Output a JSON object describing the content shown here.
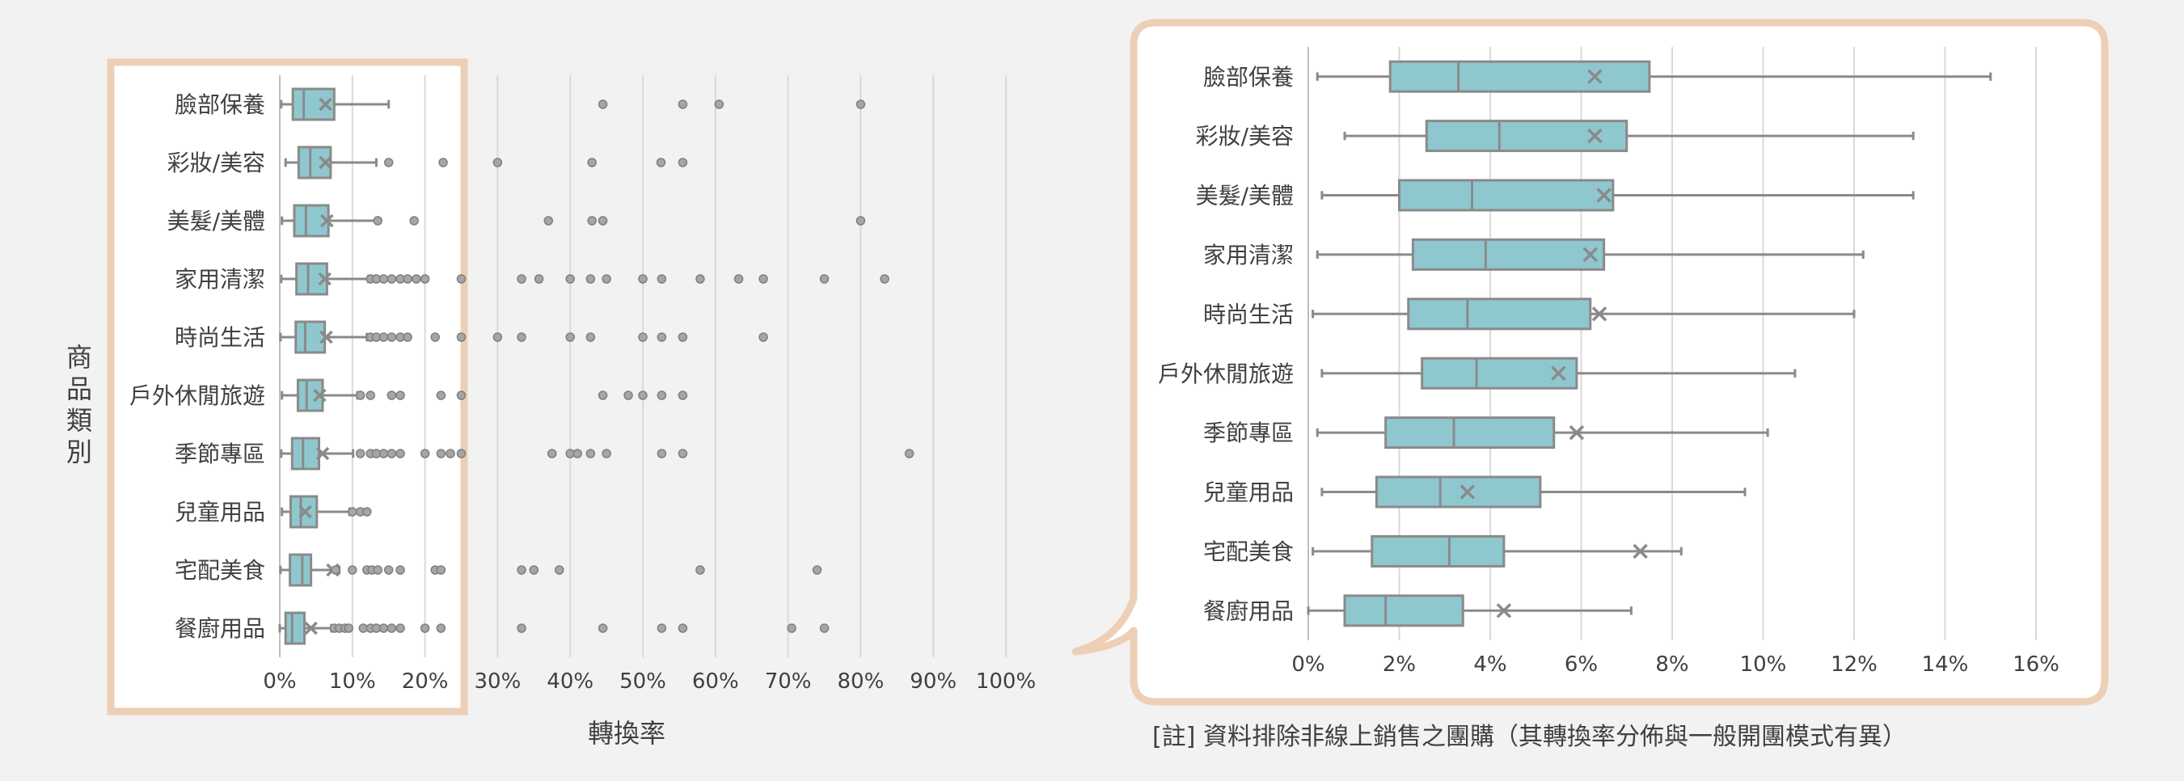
{
  "colors": {
    "box_fill": "#8fc7cf",
    "box_stroke": "#8a8a8a",
    "outlier": "#8a8a8a",
    "highlight_frame": "#eccfb5",
    "background": "#f2f2f2",
    "gridline": "#d9d9d9",
    "text": "#404040"
  },
  "chart_data": [
    {
      "type": "box",
      "orientation": "horizontal",
      "xlabel": "轉換率",
      "ylabel": "商品類別",
      "xlim": [
        0,
        100
      ],
      "x_unit": "%",
      "x_ticks": [
        "0%",
        "10%",
        "20%",
        "30%",
        "40%",
        "50%",
        "60%",
        "70%",
        "80%",
        "90%",
        "100%"
      ],
      "grid": "vertical",
      "highlight": "magnified range 0%–25%",
      "categories": [
        "臉部保養",
        "彩妝/美容",
        "美髮/美體",
        "家用清潔",
        "時尚生活",
        "戶外休閒旅遊",
        "季節專區",
        "兒童用品",
        "宅配美食",
        "餐廚用品"
      ],
      "series": [
        {
          "min": 0.2,
          "q1": 1.8,
          "median": 3.3,
          "q3": 7.5,
          "max": 15.0,
          "mean": 6.3,
          "outliers": [
            44.5,
            55.5,
            60.5,
            80.0
          ]
        },
        {
          "min": 0.8,
          "q1": 2.6,
          "median": 4.2,
          "q3": 7.0,
          "max": 13.3,
          "mean": 6.3,
          "outliers": [
            15.0,
            22.5,
            30.0,
            43.0,
            52.5,
            55.5
          ]
        },
        {
          "min": 0.3,
          "q1": 2.0,
          "median": 3.6,
          "q3": 6.7,
          "max": 13.3,
          "mean": 6.5,
          "outliers": [
            13.5,
            18.5,
            37.0,
            43.0,
            44.5,
            80.0
          ]
        },
        {
          "min": 0.2,
          "q1": 2.3,
          "median": 3.9,
          "q3": 6.5,
          "max": 12.2,
          "mean": 6.2,
          "outliers": [
            12.5,
            13.3,
            14.3,
            15.4,
            16.6,
            17.6,
            18.8,
            20.0,
            25.0,
            33.3,
            35.7,
            40.0,
            42.8,
            45.0,
            50.0,
            52.6,
            57.9,
            63.2,
            66.6,
            75.0,
            83.3
          ]
        },
        {
          "min": 0.1,
          "q1": 2.2,
          "median": 3.5,
          "q3": 6.2,
          "max": 12.0,
          "mean": 6.4,
          "outliers": [
            12.5,
            13.3,
            14.3,
            15.4,
            16.6,
            17.6,
            21.4,
            25.0,
            30.0,
            33.3,
            40.0,
            42.8,
            50.0,
            52.6,
            55.5,
            66.6
          ]
        },
        {
          "min": 0.3,
          "q1": 2.5,
          "median": 3.7,
          "q3": 5.9,
          "max": 10.7,
          "mean": 5.5,
          "outliers": [
            11.1,
            12.5,
            15.4,
            16.6,
            22.2,
            25.0,
            44.5,
            48.0,
            50.0,
            52.6,
            55.5
          ]
        },
        {
          "min": 0.2,
          "q1": 1.7,
          "median": 3.2,
          "q3": 5.4,
          "max": 10.1,
          "mean": 5.9,
          "outliers": [
            11.1,
            12.5,
            13.3,
            14.3,
            15.4,
            16.6,
            20.0,
            22.2,
            23.5,
            25.0,
            37.5,
            40.0,
            41.0,
            42.8,
            45.0,
            52.6,
            55.5,
            86.7
          ]
        },
        {
          "min": 0.3,
          "q1": 1.5,
          "median": 2.9,
          "q3": 5.1,
          "max": 9.6,
          "mean": 3.5,
          "outliers": [
            10.0,
            11.1,
            12.0
          ]
        },
        {
          "min": 0.1,
          "q1": 1.4,
          "median": 3.1,
          "q3": 4.3,
          "max": 8.2,
          "mean": 7.3,
          "outliers": [
            7.7,
            10.0,
            12.0,
            12.7,
            13.5,
            15.0,
            16.6,
            21.4,
            22.2,
            33.3,
            35.0,
            38.5,
            57.9,
            74.0
          ]
        },
        {
          "min": 0.0,
          "q1": 0.8,
          "median": 1.7,
          "q3": 3.4,
          "max": 7.1,
          "mean": 4.3,
          "outliers": [
            7.5,
            8.2,
            9.0,
            9.5,
            11.5,
            12.5,
            13.3,
            14.3,
            15.4,
            16.6,
            20.0,
            22.2,
            33.3,
            44.5,
            52.6,
            55.5,
            70.5,
            75.0
          ]
        }
      ]
    },
    {
      "type": "box",
      "orientation": "horizontal",
      "xlim": [
        0,
        16
      ],
      "x_unit": "%",
      "x_ticks": [
        "0%",
        "2%",
        "4%",
        "6%",
        "8%",
        "10%",
        "12%",
        "14%",
        "16%"
      ],
      "grid": "vertical",
      "outliers_shown": false,
      "categories": [
        "臉部保養",
        "彩妝/美容",
        "美髮/美體",
        "家用清潔",
        "時尚生活",
        "戶外休閒旅遊",
        "季節專區",
        "兒童用品",
        "宅配美食",
        "餐廚用品"
      ],
      "note": "[註] 資料排除非線上銷售之團購（其轉換率分佈與一般開團模式有異）"
    }
  ]
}
